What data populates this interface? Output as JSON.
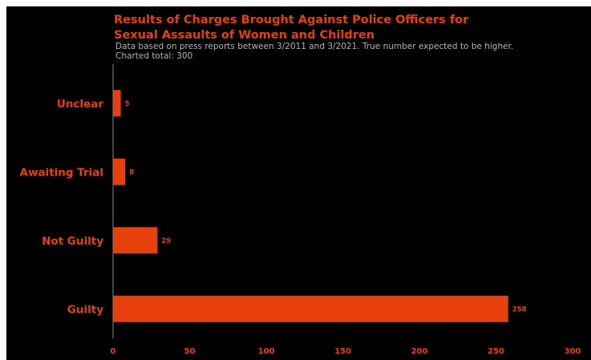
{
  "colors": {
    "background": "#000000",
    "page": "#ffffff",
    "accent": "#e8400c",
    "subtitle": "#b4b4b4",
    "axis": "#8a8a8a"
  },
  "chart_data": {
    "type": "bar",
    "orientation": "horizontal",
    "title_lines": [
      "Results of Charges Brought Against Police Officers for",
      "Sexual Assaults of Women and Children"
    ],
    "subtitle_lines": [
      "Data based on press reports between 3/2011 and 3/2021. True number expected to be higher.",
      "Charted total: 300"
    ],
    "categories": [
      "Unclear",
      "Awaiting Trial",
      "Not Guilty",
      "Guilty"
    ],
    "values": [
      5,
      8,
      29,
      258
    ],
    "xlim": [
      0,
      300
    ],
    "xticks": [
      0,
      50,
      100,
      150,
      200,
      250,
      300
    ],
    "grid": false,
    "legend": "none"
  }
}
